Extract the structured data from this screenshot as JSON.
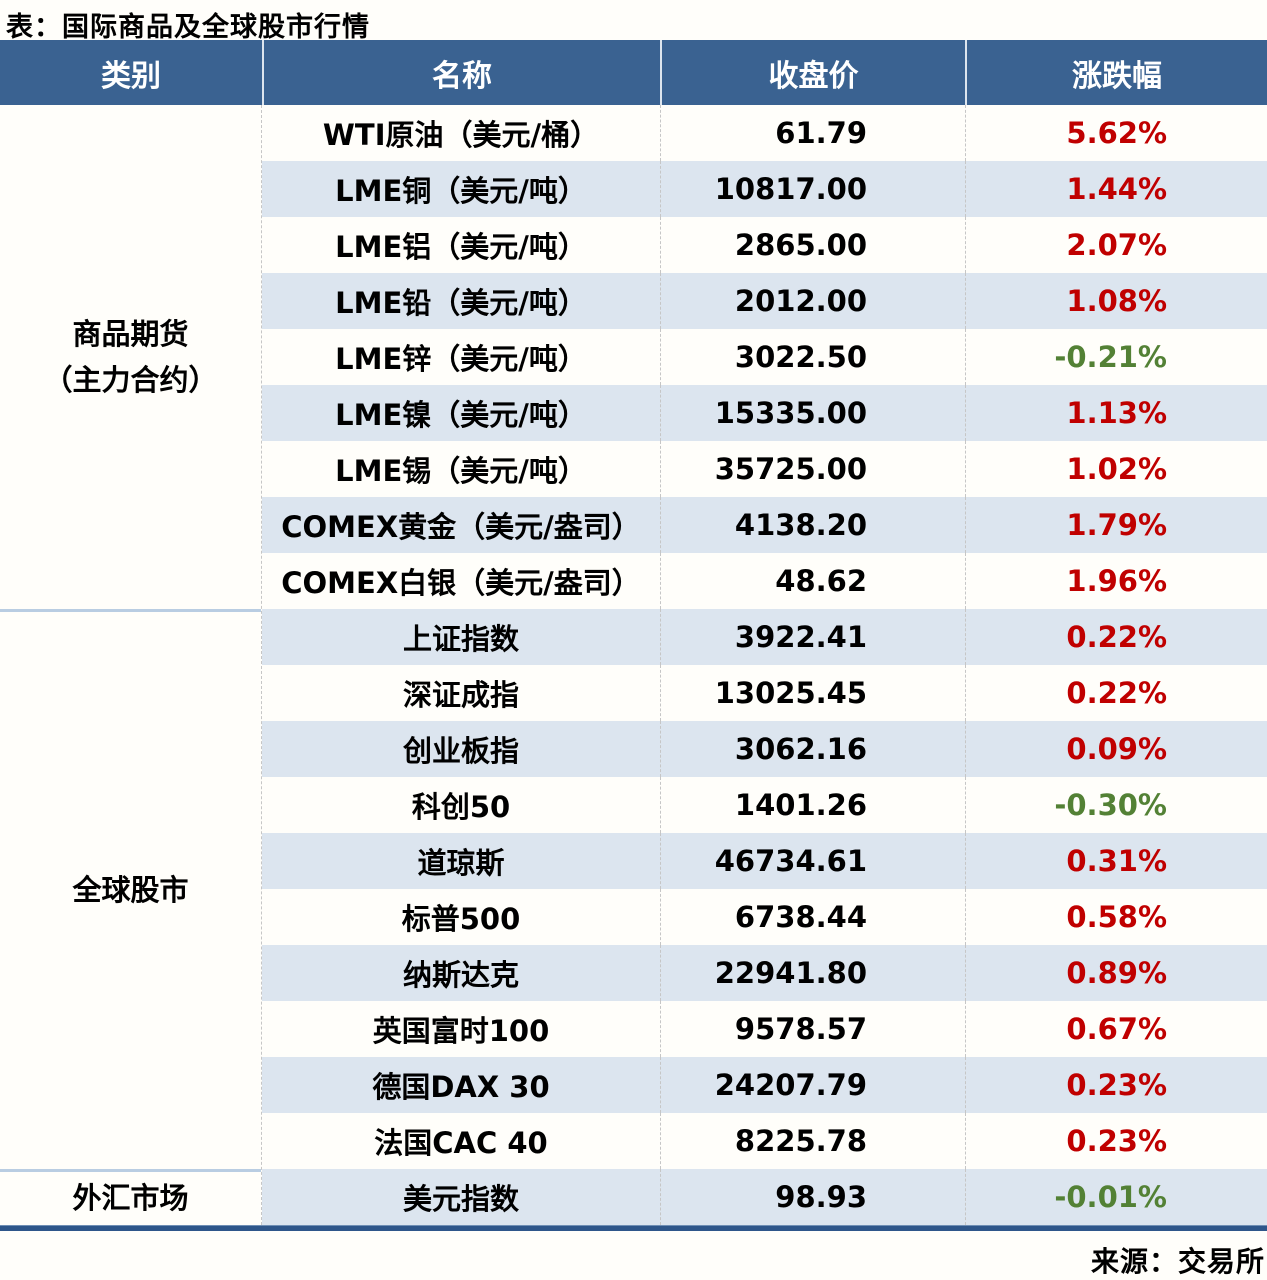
{
  "colors": {
    "header_bg": "#3a6291",
    "row_even": "#fffefa",
    "row_odd": "#dce5ef",
    "up_red": "#c00000",
    "down_green": "#538135",
    "group_separator": "#b9cde2",
    "bottom_bar": "#2e568a"
  },
  "chart_data": {
    "type": "table",
    "title": "表：国际商品及全球股市行情",
    "source": "来源：交易所",
    "columns": [
      "类别",
      "名称",
      "收盘价",
      "涨跌幅"
    ],
    "groups": [
      {
        "category": "商品期货（主力合约）",
        "category_lines": [
          "商品期货",
          "（主力合约）"
        ],
        "rows": [
          {
            "name": "WTI原油（美元/桶）",
            "close": "61.79",
            "change": "5.62%"
          },
          {
            "name": "LME铜（美元/吨）",
            "close": "10817.00",
            "change": "1.44%"
          },
          {
            "name": "LME铝（美元/吨）",
            "close": "2865.00",
            "change": "2.07%"
          },
          {
            "name": "LME铅（美元/吨）",
            "close": "2012.00",
            "change": "1.08%"
          },
          {
            "name": "LME锌（美元/吨）",
            "close": "3022.50",
            "change": "-0.21%"
          },
          {
            "name": "LME镍（美元/吨）",
            "close": "15335.00",
            "change": "1.13%"
          },
          {
            "name": "LME锡（美元/吨）",
            "close": "35725.00",
            "change": "1.02%"
          },
          {
            "name": "COMEX黄金（美元/盎司）",
            "close": "4138.20",
            "change": "1.79%"
          },
          {
            "name": "COMEX白银（美元/盎司）",
            "close": "48.62",
            "change": "1.96%"
          }
        ]
      },
      {
        "category": "全球股市",
        "category_lines": [
          "全球股市"
        ],
        "rows": [
          {
            "name": "上证指数",
            "close": "3922.41",
            "change": "0.22%"
          },
          {
            "name": "深证成指",
            "close": "13025.45",
            "change": "0.22%"
          },
          {
            "name": "创业板指",
            "close": "3062.16",
            "change": "0.09%"
          },
          {
            "name": "科创50",
            "close": "1401.26",
            "change": "-0.30%"
          },
          {
            "name": "道琼斯",
            "close": "46734.61",
            "change": "0.31%"
          },
          {
            "name": "标普500",
            "close": "6738.44",
            "change": "0.58%"
          },
          {
            "name": "纳斯达克",
            "close": "22941.80",
            "change": "0.89%"
          },
          {
            "name": "英国富时100",
            "close": "9578.57",
            "change": "0.67%"
          },
          {
            "name": "德国DAX 30",
            "close": "24207.79",
            "change": "0.23%"
          },
          {
            "name": "法国CAC 40",
            "close": "8225.78",
            "change": "0.23%"
          }
        ]
      },
      {
        "category": "外汇市场",
        "category_lines": [
          "外汇市场"
        ],
        "rows": [
          {
            "name": "美元指数",
            "close": "98.93",
            "change": "-0.01%"
          }
        ]
      }
    ]
  }
}
